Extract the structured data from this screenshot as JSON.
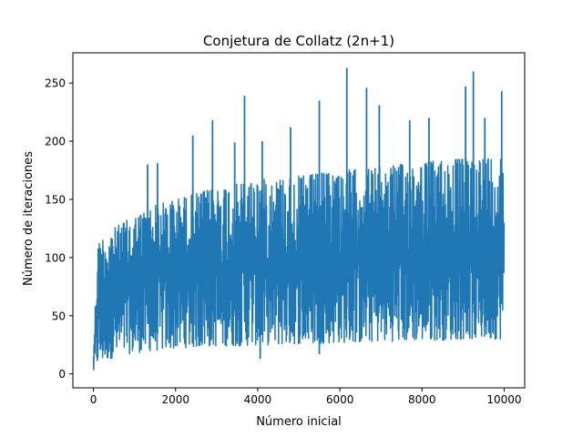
{
  "chart_data": {
    "type": "line",
    "title": "Conjetura de Collatz (2n+1)",
    "xlabel": "Número inicial",
    "ylabel": "Número de iteraciones",
    "xlim": [
      -500,
      10500
    ],
    "ylim": [
      -12,
      276
    ],
    "xticks": [
      0,
      2000,
      4000,
      6000,
      8000,
      10000
    ],
    "yticks": [
      0,
      50,
      100,
      150,
      200,
      250
    ],
    "grid": false,
    "legend": "none",
    "x_range": [
      1,
      10000
    ],
    "series": [
      {
        "color": "#1f77b4",
        "envelope": {
          "x": [
            1,
            100,
            200,
            300,
            500,
            700,
            1000,
            1500,
            2000,
            2500,
            3000,
            3500,
            4000,
            4500,
            5000,
            5500,
            6000,
            6500,
            7000,
            7500,
            8000,
            8500,
            9000,
            9500,
            10000
          ],
          "upper_typical": [
            20,
            111,
            117,
            120,
            125,
            130,
            135,
            145,
            150,
            155,
            160,
            163,
            167,
            168,
            170,
            172,
            175,
            176,
            178,
            180,
            182,
            184,
            185,
            186,
            188
          ],
          "lower_typical": [
            1,
            8,
            10,
            12,
            14,
            16,
            18,
            20,
            22,
            23,
            24,
            24,
            25,
            25,
            26,
            26,
            27,
            27,
            28,
            28,
            29,
            29,
            30,
            30,
            30
          ]
        },
        "peaks": [
          {
            "x": 1320,
            "y": 180
          },
          {
            "x": 1560,
            "y": 181
          },
          {
            "x": 2420,
            "y": 205
          },
          {
            "x": 2900,
            "y": 218
          },
          {
            "x": 3440,
            "y": 199
          },
          {
            "x": 3680,
            "y": 239
          },
          {
            "x": 4110,
            "y": 200
          },
          {
            "x": 4800,
            "y": 212
          },
          {
            "x": 5500,
            "y": 235
          },
          {
            "x": 6170,
            "y": 263
          },
          {
            "x": 6650,
            "y": 246
          },
          {
            "x": 6960,
            "y": 231
          },
          {
            "x": 7700,
            "y": 218
          },
          {
            "x": 8170,
            "y": 220
          },
          {
            "x": 9060,
            "y": 247
          },
          {
            "x": 9250,
            "y": 260
          },
          {
            "x": 9530,
            "y": 220
          },
          {
            "x": 9940,
            "y": 243
          }
        ],
        "troughs": [
          {
            "x": 4060,
            "y": 13
          },
          {
            "x": 5500,
            "y": 17
          }
        ]
      }
    ]
  }
}
